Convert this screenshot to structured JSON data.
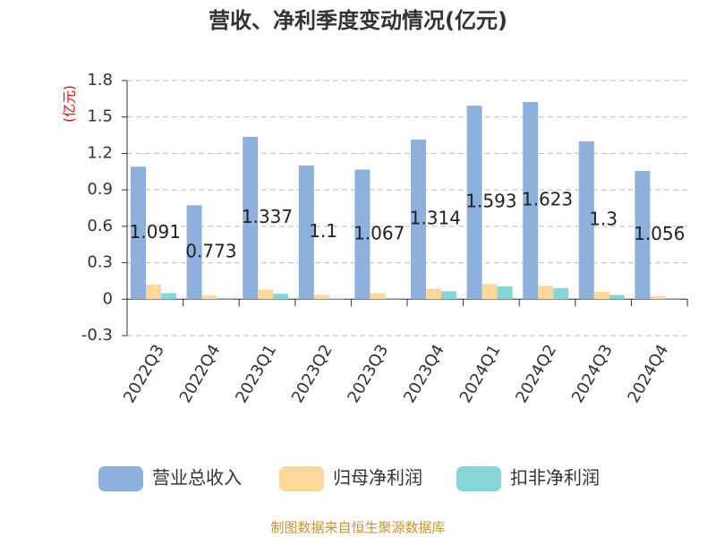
{
  "chart_data": {
    "type": "bar",
    "title": "营收、净利季度变动情况(亿元)",
    "y_label": "(亿元)",
    "source": "制图数据来自恒生聚源数据库",
    "categories": [
      "2022Q3",
      "2022Q4",
      "2023Q1",
      "2023Q2",
      "2023Q3",
      "2023Q4",
      "2024Q1",
      "2024Q2",
      "2024Q3",
      "2024Q4"
    ],
    "series": [
      {
        "name": "营业总收入",
        "color": "#8eb0dc",
        "values": [
          1.091,
          0.773,
          1.337,
          1.1,
          1.067,
          1.314,
          1.593,
          1.623,
          1.3,
          1.056
        ]
      },
      {
        "name": "归母净利润",
        "color": "#fdd89a",
        "values": [
          0.12,
          0.03,
          0.08,
          0.035,
          0.05,
          0.085,
          0.125,
          0.11,
          0.06,
          0.025
        ]
      },
      {
        "name": "扣非净利润",
        "color": "#86d6d8",
        "values": [
          0.05,
          0.01,
          0.045,
          0.005,
          0.01,
          0.065,
          0.105,
          0.09,
          0.035,
          0.01
        ]
      }
    ],
    "ylim": [
      -0.3,
      1.8
    ],
    "yticks": [
      -0.3,
      0,
      0.3,
      0.6,
      0.9,
      1.2,
      1.5,
      1.8
    ],
    "grid": true
  }
}
